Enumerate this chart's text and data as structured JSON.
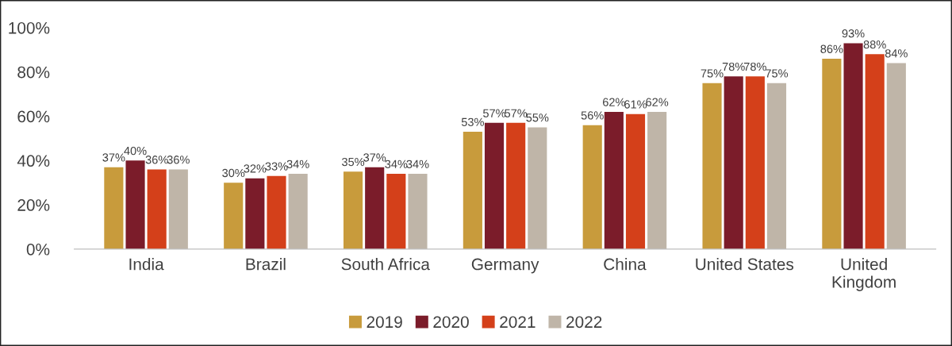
{
  "chart_data": {
    "type": "bar",
    "categories": [
      "India",
      "Brazil",
      "South Africa",
      "Germany",
      "China",
      "United States",
      "United Kingdom"
    ],
    "series": [
      {
        "name": "2019",
        "color": "#c89b3c",
        "values": [
          37,
          30,
          35,
          53,
          56,
          75,
          86
        ],
        "value_labels": [
          "37%",
          "30%",
          "35%",
          "53%",
          "56%",
          "75%",
          "86%"
        ]
      },
      {
        "name": "2020",
        "color": "#7b1c2a",
        "values": [
          40,
          32,
          37,
          57,
          62,
          78,
          93
        ],
        "value_labels": [
          "40%",
          "32%",
          "37%",
          "57%",
          "62%",
          "78%",
          "93%"
        ]
      },
      {
        "name": "2021",
        "color": "#d4401a",
        "values": [
          36,
          33,
          34,
          57,
          61,
          78,
          88
        ],
        "value_labels": [
          "36%",
          "33%",
          "34%",
          "57%",
          "61%",
          "78%",
          "88%"
        ]
      },
      {
        "name": "2022",
        "color": "#bfb5a8",
        "values": [
          36,
          34,
          34,
          55,
          62,
          75,
          84
        ],
        "value_labels": [
          "36%",
          "34%",
          "34%",
          "55%",
          "62%",
          "75%",
          "84%"
        ]
      }
    ],
    "ylim": [
      0,
      100
    ],
    "yticks": [
      {
        "value": 0,
        "label": "0%"
      },
      {
        "value": 20,
        "label": "20%"
      },
      {
        "value": 40,
        "label": "40%"
      },
      {
        "value": 60,
        "label": "60%"
      },
      {
        "value": 80,
        "label": "80%"
      },
      {
        "value": 100,
        "label": "100%"
      }
    ],
    "grid": false,
    "legend": "bottom"
  }
}
